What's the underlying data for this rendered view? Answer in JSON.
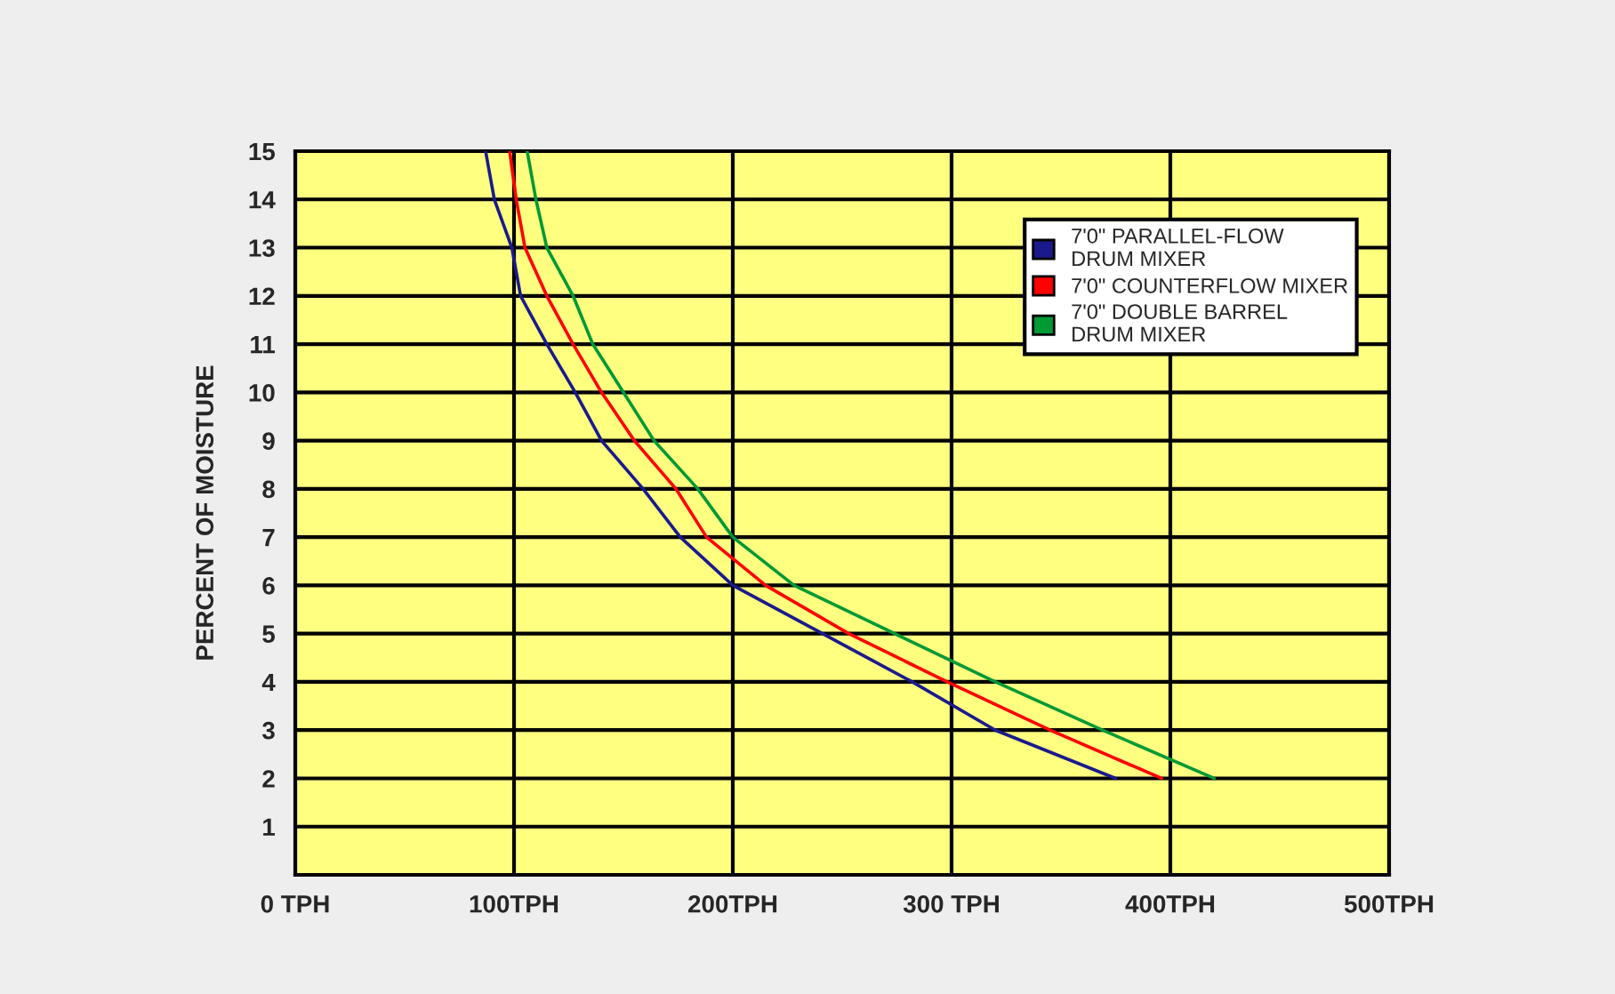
{
  "chart_data": {
    "type": "line",
    "ylabel": "PERCENT OF MOISTURE",
    "xlim": [
      0,
      500
    ],
    "ylim": [
      0,
      15
    ],
    "xticks": [
      {
        "value": 0,
        "label": "0 TPH"
      },
      {
        "value": 100,
        "label": "100TPH"
      },
      {
        "value": 200,
        "label": "200TPH"
      },
      {
        "value": 300,
        "label": "300 TPH"
      },
      {
        "value": 400,
        "label": "400TPH"
      },
      {
        "value": 500,
        "label": "500TPH"
      }
    ],
    "yticks": [
      1,
      2,
      3,
      4,
      5,
      6,
      7,
      8,
      9,
      10,
      11,
      12,
      13,
      14,
      15
    ],
    "grid": true,
    "legend": "top right",
    "marker": "none",
    "line_style": "solid",
    "series": [
      {
        "name": "7'0\" PARALLEL-FLOW\nDRUM MIXER",
        "color": "#1a1a8c",
        "x": [
          87,
          91,
          99,
          103,
          115,
          128,
          140,
          159,
          176,
          200,
          241,
          282,
          320,
          375
        ],
        "values": [
          15,
          14,
          13,
          12,
          11,
          10,
          9,
          8,
          7,
          6,
          5,
          4,
          3,
          2
        ]
      },
      {
        "name": "7'0\" COUNTERFLOW MIXER",
        "color": "#ff0000",
        "x": [
          98,
          101,
          105,
          115,
          127,
          140,
          155,
          174,
          188,
          215,
          253,
          298,
          345,
          396
        ],
        "values": [
          15,
          14,
          13,
          12,
          11,
          10,
          9,
          8,
          7,
          6,
          5,
          4,
          3,
          2
        ]
      },
      {
        "name": "7'0\" DOUBLE BARREL\nDRUM MIXER",
        "color": "#009933",
        "x": [
          106,
          110,
          115,
          127,
          136,
          150,
          164,
          184,
          200,
          228,
          274,
          320,
          369,
          420
        ],
        "values": [
          15,
          14,
          13,
          12,
          11,
          10,
          9,
          8,
          7,
          6,
          5,
          4,
          3,
          2
        ]
      }
    ]
  }
}
